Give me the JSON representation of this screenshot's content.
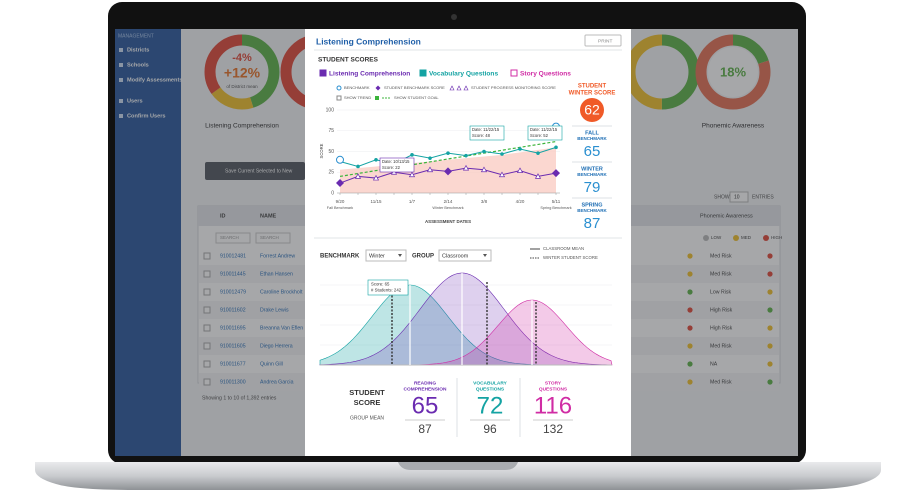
{
  "sidebar": {
    "heading": "MANAGEMENT",
    "items": [
      "Districts",
      "Schools",
      "Modify Assessments",
      "Users",
      "Confirm Users"
    ]
  },
  "gauges": [
    {
      "label": "Listening Comprehension",
      "change": "-4%",
      "value": "+12%",
      "note": "of District mean"
    },
    {
      "label": "Phonemic Awareness",
      "value": "18%"
    }
  ],
  "toolbar": {
    "save_button": "Save Current Selected to New",
    "show": "SHOW",
    "show_count": "10",
    "entries": "ENTRIES"
  },
  "table": {
    "headers": [
      "ID",
      "NAME",
      "Phonemic Awareness"
    ],
    "filters": [
      "SEARCH",
      "SEARCH"
    ],
    "risk_levels": [
      "LOW",
      "MED",
      "HIGH"
    ],
    "rows": [
      [
        "910012481",
        "Forrest Andrew",
        "Med Risk"
      ],
      [
        "910011445",
        "Ethan Hansen",
        "Med Risk"
      ],
      [
        "910012479",
        "Caroline Brockholt",
        "Low Risk"
      ],
      [
        "910011602",
        "Drake Lewis",
        "High Risk"
      ],
      [
        "910011695",
        "Breanna Van Eflen",
        "High Risk"
      ],
      [
        "910011605",
        "Diego Herrera",
        "Med Risk"
      ],
      [
        "910011677",
        "Quinn Gill",
        "NA"
      ],
      [
        "910011300",
        "Andrea Garcia",
        "Med Risk"
      ]
    ],
    "footer": "Showing 1 to 10 of 1,392 entries"
  },
  "modal": {
    "title": "Listening Comprehension",
    "print": "PRINT",
    "section": "STUDENT SCORES",
    "filters": [
      {
        "label": "Listening Comprehension",
        "checked": true,
        "color": "#6a2bb0"
      },
      {
        "label": "Vocabulary Questions",
        "checked": true,
        "color": "#14a3a3"
      },
      {
        "label": "Story Questions",
        "checked": false,
        "color": "#d02ca4"
      }
    ],
    "legend": [
      "BENCHMARK",
      "STUDENT BENCHMARK SCORE",
      "STUDENT PROGRESS MONITORING SCORE",
      "SHOW TREND",
      "SHOW STUDENT GOAL"
    ],
    "line_chart": {
      "type": "line",
      "y_label": "SCORE",
      "x_label": "ASSESSMENT DATES",
      "categories": [
        "9/20",
        null,
        "11/15",
        null,
        "1/7",
        null,
        "2/14",
        null,
        "3/8",
        null,
        "4/20",
        null,
        "5/11"
      ],
      "category_notes": [
        "Fall Benchmark",
        null,
        null,
        null,
        null,
        null,
        "Winter Benchmark",
        null,
        null,
        null,
        null,
        null,
        "Spring Benchmark"
      ],
      "ylim": [
        0,
        100
      ],
      "yticks": [
        0,
        25,
        50,
        75,
        100
      ],
      "series": [
        {
          "name": "Vocabulary Questions",
          "color": "#14a3a3",
          "values": [
            38,
            32,
            40,
            35,
            46,
            42,
            48,
            45,
            50,
            47,
            53,
            48,
            55
          ]
        },
        {
          "name": "Listening Comprehension",
          "color": "#6a2bb0",
          "values": [
            12,
            20,
            18,
            25,
            22,
            28,
            26,
            30,
            28,
            22,
            27,
            20,
            24
          ]
        }
      ],
      "benchmark_area": {
        "color": "#f9c9c0",
        "values": [
          28,
          30,
          32,
          34,
          36,
          38,
          40,
          42,
          44,
          46,
          49,
          52,
          55
        ]
      },
      "benchmarks": {
        "color": "#2a8fd0",
        "values": [
          40,
          null,
          null,
          null,
          null,
          null,
          null,
          null,
          null,
          null,
          null,
          null,
          80
        ]
      },
      "goal": {
        "color": "#3cb43c",
        "start": 20,
        "end": 62
      },
      "callouts": [
        [
          "Date: 10/13/15",
          "Score: 22"
        ],
        [
          "Date: 11/22/15",
          "Score: 48"
        ],
        [
          "Date: 11/22/15",
          "Score: 52"
        ]
      ]
    },
    "score_panel": [
      {
        "label_lines": [
          "STUDENT",
          "WINTER SCORE"
        ],
        "value": "62"
      },
      {
        "label_lines": [
          "FALL",
          "BENCHMARK"
        ],
        "value": "65"
      },
      {
        "label_lines": [
          "WINTER",
          "BENCHMARK"
        ],
        "value": "79"
      },
      {
        "label_lines": [
          "SPRING",
          "BENCHMARK"
        ],
        "value": "87"
      }
    ],
    "distribution": {
      "benchmark_label": "BENCHMARK",
      "benchmark_value": "Winter",
      "group_label": "GROUP",
      "group_value": "Classroom",
      "legend": [
        "CLASSROOM MEAN",
        "WINTER STUDENT SCORE"
      ],
      "tooltip": [
        "Score: 65",
        "# Students: 242"
      ]
    },
    "summary": {
      "row_label_lines": [
        "STUDENT",
        "SCORE"
      ],
      "mean_label": "GROUP MEAN",
      "columns": [
        {
          "title_lines": [
            "READING",
            "COMPREHENSION"
          ],
          "score": "65",
          "mean": "87",
          "color": "#6a2bb0"
        },
        {
          "title_lines": [
            "VOCABULARY",
            "QUESTIONS"
          ],
          "score": "72",
          "mean": "96",
          "color": "#14a3a3"
        },
        {
          "title_lines": [
            "STORY",
            "QUESTIONS"
          ],
          "score": "116",
          "mean": "132",
          "color": "#d02ca4"
        }
      ]
    }
  }
}
